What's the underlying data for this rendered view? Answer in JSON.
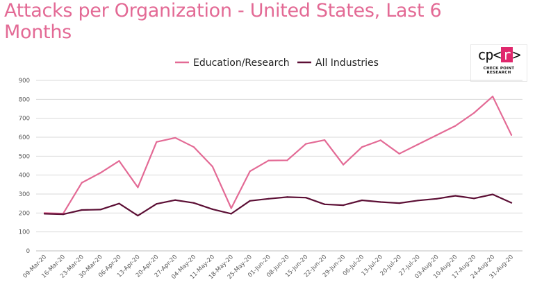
{
  "title": "Attacks per Organization - United States, Last 6 Months",
  "logo": {
    "mark_left": "cp<",
    "mark_boxed": "r",
    "mark_right": ">",
    "subtitle": "CHECK POINT RESEARCH"
  },
  "colors": {
    "education": "#e36a95",
    "all": "#5c0f35",
    "grid": "#d9d9d9",
    "title": "#e36a95"
  },
  "chart_data": {
    "type": "line",
    "title": "Attacks per Organization - United States, Last 6 Months",
    "xlabel": "",
    "ylabel": "",
    "ylim": [
      0,
      900
    ],
    "yticks": [
      0,
      100,
      200,
      300,
      400,
      500,
      600,
      700,
      800,
      900
    ],
    "grid": true,
    "legend_position": "top-center",
    "categories": [
      "09-Mar-20",
      "16-Mar-20",
      "23-Mar-20",
      "30-Mar-20",
      "06-Apr-20",
      "13-Apr-20",
      "20-Apr-20",
      "27-Apr-20",
      "04-May-20",
      "11-May-20",
      "18-May-20",
      "25-May-20",
      "01-Jun-20",
      "08-Jun-20",
      "15-Jun-20",
      "22-Jun-20",
      "29-Jun-20",
      "06-Jul-20",
      "13-Jul-20",
      "20-Jul-20",
      "27-Jul-20",
      "03-Aug-20",
      "10-Aug-20",
      "17-Aug-20",
      "24-Aug-20",
      "31-Aug-20"
    ],
    "series": [
      {
        "name": "Education/Research",
        "key": "education",
        "values": [
          200,
          197,
          360,
          412,
          475,
          335,
          575,
          597,
          548,
          445,
          225,
          420,
          477,
          478,
          565,
          585,
          455,
          548,
          584,
          513,
          562,
          611,
          660,
          728,
          815,
          612
        ]
      },
      {
        "name": "All Industries",
        "key": "all",
        "values": [
          196,
          193,
          216,
          218,
          250,
          186,
          248,
          268,
          253,
          220,
          196,
          264,
          275,
          284,
          281,
          246,
          241,
          267,
          258,
          252,
          266,
          275,
          291,
          277,
          298,
          254
        ]
      }
    ]
  }
}
